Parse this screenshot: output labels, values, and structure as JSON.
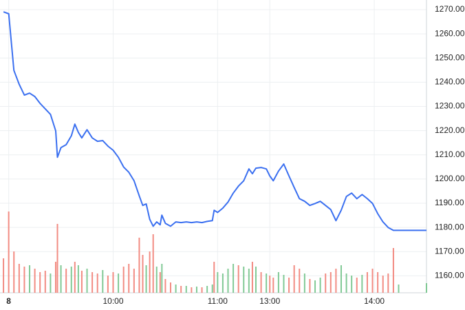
{
  "chart_data": {
    "type": "line",
    "x": [
      -3,
      0,
      3,
      6,
      9,
      12,
      15,
      18,
      21,
      24,
      27,
      28,
      30,
      33,
      36,
      38,
      40,
      42,
      45,
      48,
      51,
      54,
      57,
      60,
      63,
      66,
      69,
      72,
      75,
      77,
      79,
      81,
      83,
      85,
      87,
      88,
      90,
      93,
      96,
      99,
      102,
      105,
      108,
      111,
      114,
      117,
      118,
      120,
      123,
      126,
      129,
      132,
      135,
      138,
      140,
      142,
      145,
      148,
      150,
      152,
      155,
      158,
      161,
      164,
      167,
      170,
      173,
      176,
      179,
      182,
      185,
      188,
      191,
      194,
      197,
      200,
      203,
      206,
      209,
      212,
      215,
      218,
      221,
      224,
      240
    ],
    "series": [
      {
        "color": "#3a6ff0",
        "values": [
          1269.1,
          1268.3,
          1244.9,
          1239.2,
          1234.7,
          1235.5,
          1234.1,
          1231.3,
          1229,
          1226.7,
          1219.9,
          1209,
          1213,
          1214.2,
          1217.9,
          1222.7,
          1219.3,
          1217,
          1220.4,
          1217,
          1215.6,
          1215.9,
          1213.6,
          1211.9,
          1209,
          1205,
          1202.8,
          1199.3,
          1193.1,
          1189.1,
          1189.7,
          1183.4,
          1180.5,
          1182.3,
          1181.1,
          1185.1,
          1181.7,
          1180.5,
          1182.3,
          1182,
          1182.3,
          1182,
          1182.3,
          1182,
          1182.5,
          1182.8,
          1187.1,
          1186.2,
          1188,
          1190.5,
          1194.2,
          1197.1,
          1199.3,
          1204.2,
          1202.2,
          1204.5,
          1204.8,
          1204.2,
          1201.3,
          1199.3,
          1203.3,
          1206.2,
          1201.3,
          1196.5,
          1191.9,
          1190.8,
          1189.1,
          1189.9,
          1190.8,
          1189.1,
          1187.4,
          1182.8,
          1187.1,
          1192.8,
          1194.2,
          1191.9,
          1193.6,
          1191.9,
          1189.9,
          1185.7,
          1182.3,
          1180,
          1178.8,
          1178.8,
          1178.8
        ]
      },
      {
        "colors": [
          "#f28b82",
          "#f28b82",
          "#f28b82",
          "#f28b82",
          "#f28b82",
          "#81c995",
          "#f28b82",
          "#f28b82",
          "#f28b82",
          "#81c995",
          "#f28b82",
          "#f28b82",
          "#81c995",
          "#f28b82",
          "#81c995",
          "#f28b82",
          "#81c995",
          "#f28b82",
          "#81c995",
          "#f28b82",
          "#f28b82",
          "#81c995",
          "#f28b82",
          "#f28b82",
          "#81c995",
          "#f28b82",
          "#f28b82",
          "#f28b82",
          "#f28b82",
          "#f28b82",
          "#81c995",
          "#f28b82",
          "#f28b82",
          "#81c995",
          "#f28b82",
          "#81c995",
          "#f28b82",
          "#f28b82",
          "#81c995",
          "#f28b82",
          "#81c995",
          "#f28b82",
          "#81c995",
          "#f28b82",
          "#81c995",
          "#81c995",
          "#f28b82",
          "#81c995",
          "#81c995",
          "#81c995",
          "#81c995",
          "#f28b82",
          "#81c995",
          "#81c995",
          "#f28b82",
          "#81c995",
          "#f28b82",
          "#81c995",
          "#f28b82",
          "#f28b82",
          "#81c995",
          "#81c995",
          "#f28b82",
          "#f28b82",
          "#f28b82",
          "#81c995",
          "#f28b82",
          "#81c995",
          "#81c995",
          "#f28b82",
          "#f28b82",
          "#f28b82",
          "#81c995",
          "#81c995",
          "#81c995",
          "#f28b82",
          "#81c995",
          "#f28b82",
          "#f28b82",
          "#f28b82",
          "#f28b82",
          "#f28b82",
          "#f28b82",
          "#81c995",
          "#81c995"
        ],
        "values": [
          50,
          118,
          60,
          42,
          38,
          40,
          35,
          30,
          32,
          28,
          45,
          100,
          40,
          35,
          38,
          45,
          40,
          32,
          35,
          30,
          28,
          33,
          25,
          30,
          28,
          38,
          42,
          35,
          80,
          55,
          40,
          60,
          85,
          38,
          30,
          42,
          20,
          15,
          12,
          10,
          10,
          8,
          9,
          8,
          10,
          12,
          45,
          30,
          28,
          35,
          42,
          40,
          38,
          35,
          45,
          38,
          30,
          28,
          25,
          22,
          30,
          26,
          22,
          40,
          35,
          28,
          20,
          18,
          22,
          28,
          30,
          35,
          40,
          28,
          25,
          22,
          26,
          30,
          35,
          30,
          25,
          28,
          65,
          12,
          14
        ]
      }
    ],
    "xlim": [
      -5,
      240
    ],
    "ylim": [
      1153,
      1274
    ],
    "xticks": [
      {
        "value": 0,
        "label": "8"
      },
      {
        "value": 60,
        "label": "10:00"
      },
      {
        "value": 120,
        "label": "11:00"
      },
      {
        "value": 150,
        "label": "13:00"
      },
      {
        "value": 210,
        "label": "14:00"
      }
    ],
    "yticks": [
      {
        "value": 1160,
        "label": "1160.00"
      },
      {
        "value": 1170,
        "label": "1170.00"
      },
      {
        "value": 1180,
        "label": "1180.00"
      },
      {
        "value": 1190,
        "label": "1190.00"
      },
      {
        "value": 1200,
        "label": "1200.00"
      },
      {
        "value": 1210,
        "label": "1210.00"
      },
      {
        "value": 1220,
        "label": "1220.00"
      },
      {
        "value": 1230,
        "label": "1230.00"
      },
      {
        "value": 1240,
        "label": "1240.00"
      },
      {
        "value": 1250,
        "label": "1250.00"
      },
      {
        "value": 1260,
        "label": "1260.00"
      },
      {
        "value": 1270,
        "label": "1270.00"
      }
    ],
    "grid": true
  }
}
